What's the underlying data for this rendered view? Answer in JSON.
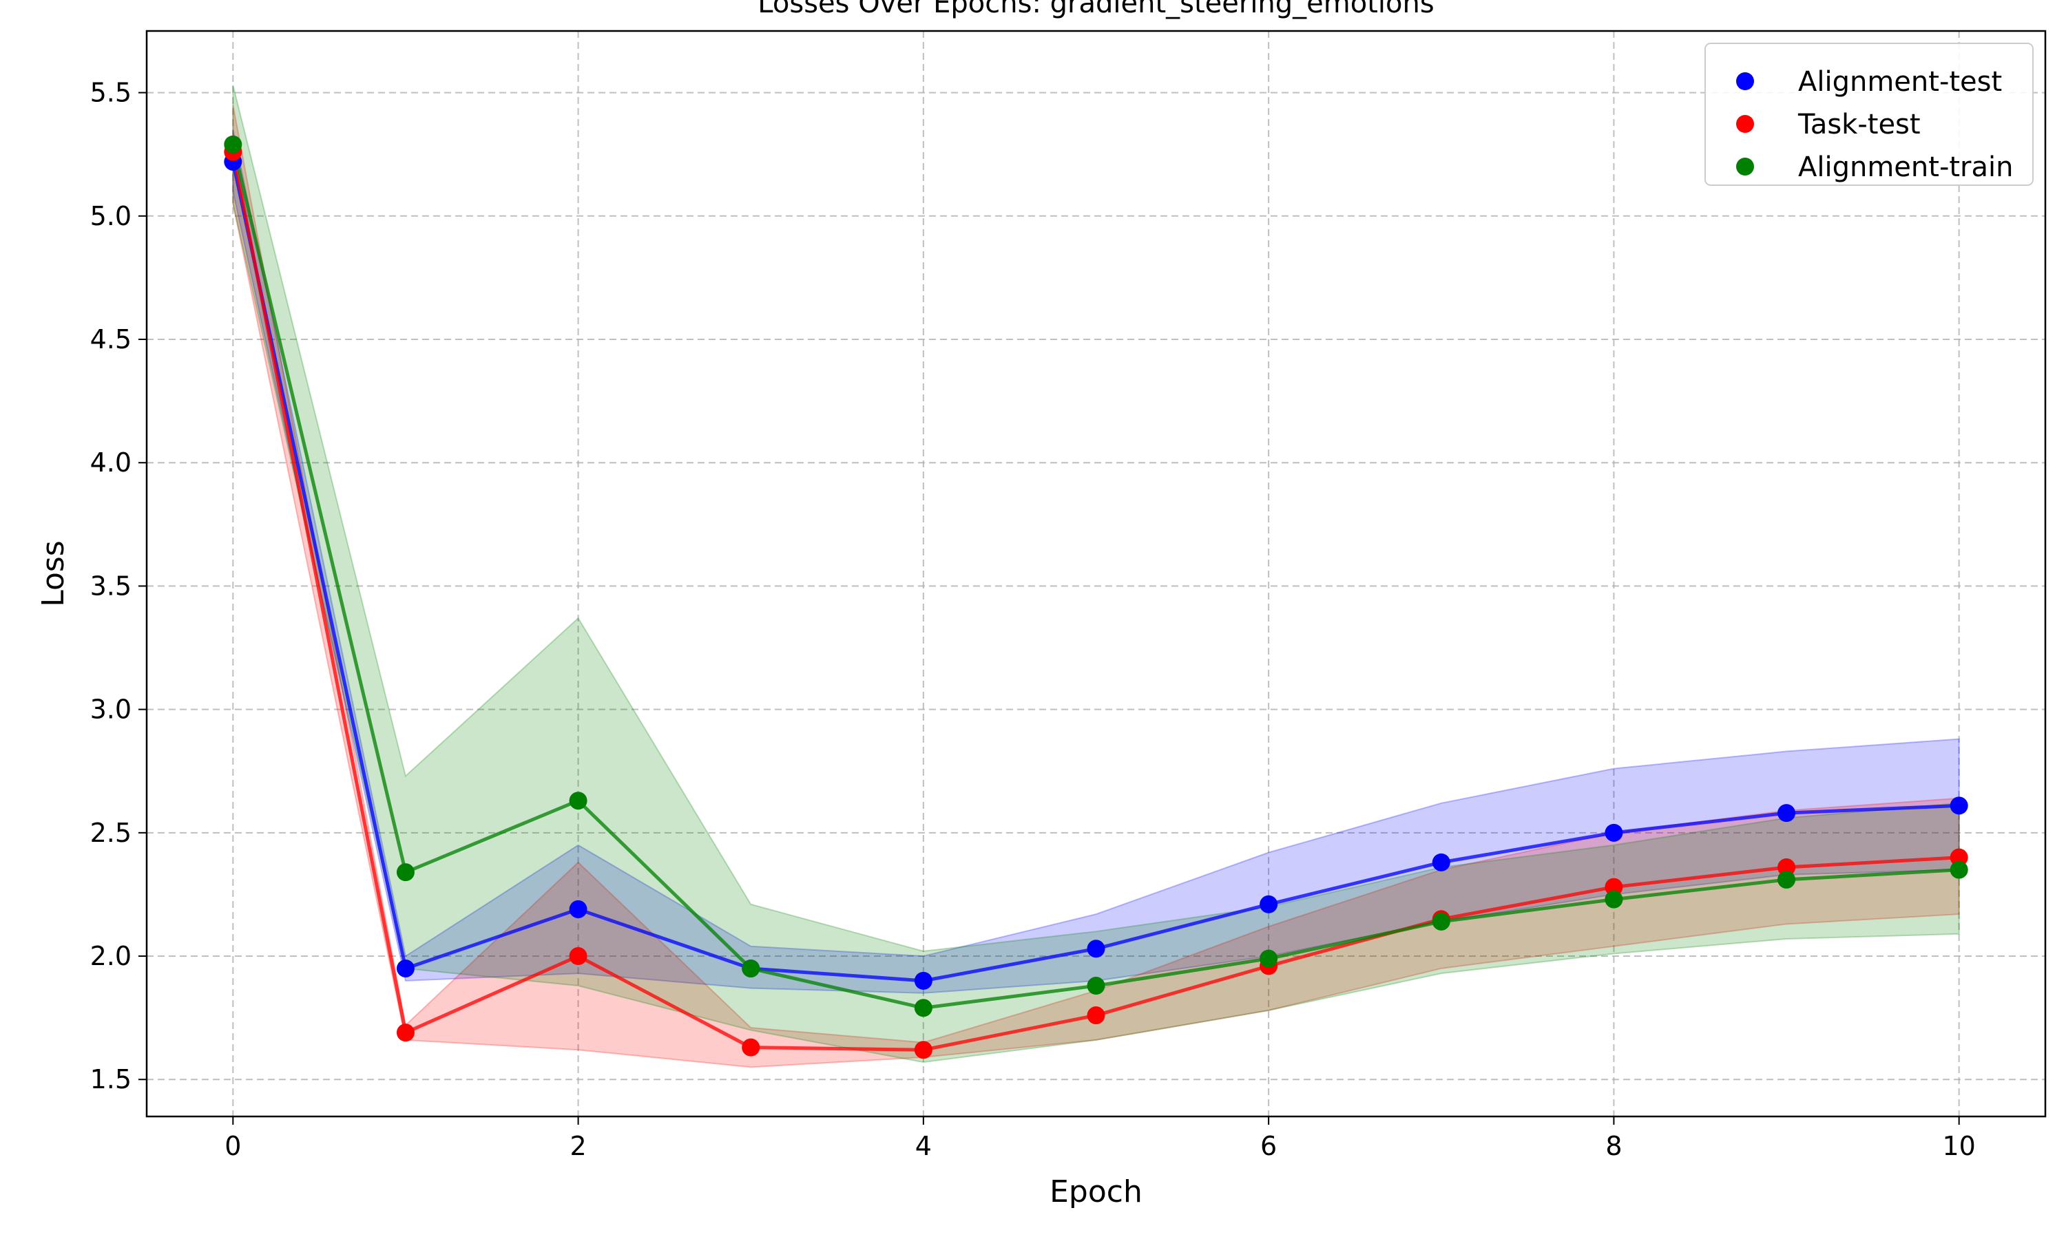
{
  "chart_data": {
    "type": "line",
    "title": "Losses Over Epochs: gradient_steering_emotions",
    "xlabel": "Epoch",
    "ylabel": "Loss",
    "xlim": [
      -0.5,
      10.5
    ],
    "ylim": [
      1.35,
      5.75
    ],
    "xticks": [
      0,
      2,
      4,
      6,
      8,
      10
    ],
    "yticks": [
      1.5,
      2.0,
      2.5,
      3.0,
      3.5,
      4.0,
      4.5,
      5.0,
      5.5
    ],
    "grid": true,
    "legend_position": "top-right",
    "x": [
      0,
      1,
      2,
      3,
      4,
      5,
      6,
      7,
      8,
      9,
      10
    ],
    "series": [
      {
        "name": "Alignment-test",
        "color": "#0000ff",
        "values": [
          5.22,
          1.95,
          2.19,
          1.95,
          1.9,
          2.03,
          2.21,
          2.38,
          2.5,
          2.58,
          2.61
        ],
        "band_lower": [
          5.1,
          1.9,
          1.93,
          1.87,
          1.85,
          1.9,
          2.0,
          2.14,
          2.25,
          2.33,
          2.35
        ],
        "band_upper": [
          5.35,
          2.0,
          2.45,
          2.04,
          2.0,
          2.17,
          2.42,
          2.62,
          2.76,
          2.83,
          2.88
        ]
      },
      {
        "name": "Task-test",
        "color": "#ff0000",
        "values": [
          5.26,
          1.69,
          2.0,
          1.63,
          1.62,
          1.76,
          1.96,
          2.15,
          2.28,
          2.36,
          2.4
        ],
        "band_lower": [
          5.05,
          1.66,
          1.62,
          1.55,
          1.59,
          1.66,
          1.78,
          1.95,
          2.04,
          2.13,
          2.17
        ],
        "band_upper": [
          5.45,
          1.72,
          2.38,
          1.71,
          1.65,
          1.86,
          2.12,
          2.35,
          2.5,
          2.59,
          2.64
        ]
      },
      {
        "name": "Alignment-train",
        "color": "#008000",
        "values": [
          5.29,
          2.34,
          2.63,
          1.95,
          1.79,
          1.88,
          1.99,
          2.14,
          2.23,
          2.31,
          2.35
        ],
        "band_lower": [
          5.05,
          1.95,
          1.88,
          1.7,
          1.57,
          1.66,
          1.78,
          1.93,
          2.01,
          2.07,
          2.09
        ],
        "band_upper": [
          5.53,
          2.73,
          3.37,
          2.21,
          2.02,
          2.1,
          2.2,
          2.36,
          2.45,
          2.56,
          2.62
        ]
      }
    ]
  }
}
